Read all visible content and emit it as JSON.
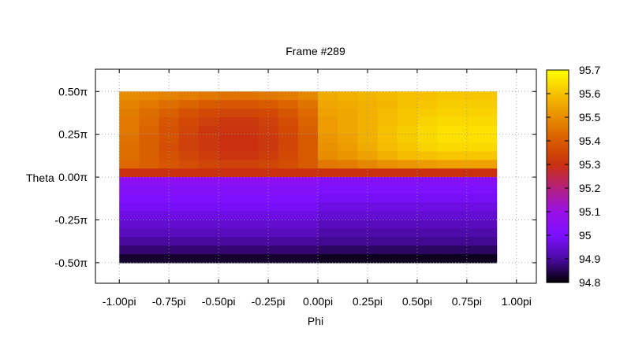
{
  "chart_data": {
    "type": "heatmap",
    "title": "Frame #289",
    "xlabel": "Phi",
    "ylabel": "Theta",
    "x_unit": "pi",
    "y_unit": "π",
    "xlim": [
      -1.12,
      1.1
    ],
    "ylim": [
      -0.62,
      0.63
    ],
    "data_xrange": [
      -1.0,
      0.9
    ],
    "data_yrange": [
      -0.5,
      0.5
    ],
    "x_ticks": [
      {
        "value": -1.0,
        "label": "-1.00pi"
      },
      {
        "value": -0.75,
        "label": "-0.75pi"
      },
      {
        "value": -0.5,
        "label": "-0.50pi"
      },
      {
        "value": -0.25,
        "label": "-0.25pi"
      },
      {
        "value": 0.0,
        "label": "0.00pi"
      },
      {
        "value": 0.25,
        "label": "0.25pi"
      },
      {
        "value": 0.5,
        "label": "0.50pi"
      },
      {
        "value": 0.75,
        "label": "0.75pi"
      },
      {
        "value": 1.0,
        "label": "1.00pi"
      }
    ],
    "y_ticks": [
      {
        "value": 0.5,
        "label": "0.50π"
      },
      {
        "value": 0.25,
        "label": "0.25π"
      },
      {
        "value": 0.0,
        "label": "0.00π"
      },
      {
        "value": -0.25,
        "label": "-0.25π"
      },
      {
        "value": -0.5,
        "label": "-0.50π"
      }
    ],
    "colorbar": {
      "range": [
        94.8,
        95.7
      ],
      "ticks": [
        {
          "value": 95.7,
          "label": "95.7"
        },
        {
          "value": 95.6,
          "label": "95.6"
        },
        {
          "value": 95.5,
          "label": "95.5"
        },
        {
          "value": 95.4,
          "label": "95.4"
        },
        {
          "value": 95.3,
          "label": "95.3"
        },
        {
          "value": 95.2,
          "label": "95.2"
        },
        {
          "value": 95.1,
          "label": "95.1"
        },
        {
          "value": 95.0,
          "label": "95"
        },
        {
          "value": 94.9,
          "label": "94.9"
        },
        {
          "value": 94.8,
          "label": "94.8"
        }
      ]
    },
    "colormap": [
      {
        "value": 94.8,
        "color": "#000000"
      },
      {
        "value": 94.9,
        "color": "#4a0aa0"
      },
      {
        "value": 95.0,
        "color": "#7b10ff"
      },
      {
        "value": 95.1,
        "color": "#9a10e8"
      },
      {
        "value": 95.2,
        "color": "#b42080"
      },
      {
        "value": 95.3,
        "color": "#c83010"
      },
      {
        "value": 95.4,
        "color": "#d85a00"
      },
      {
        "value": 95.5,
        "color": "#e88c00"
      },
      {
        "value": 95.6,
        "color": "#f6c000"
      },
      {
        "value": 95.7,
        "color": "#ffff00"
      }
    ],
    "x": [
      -0.95,
      -0.85,
      -0.75,
      -0.65,
      -0.55,
      -0.45,
      -0.35,
      -0.25,
      -0.15,
      -0.05,
      0.05,
      0.15,
      0.25,
      0.35,
      0.45,
      0.55,
      0.65,
      0.75,
      0.85
    ],
    "y": [
      0.475,
      0.425,
      0.375,
      0.325,
      0.275,
      0.225,
      0.175,
      0.125,
      0.075,
      0.025,
      -0.025,
      -0.075,
      -0.125,
      -0.175,
      -0.225,
      -0.275,
      -0.325,
      -0.375,
      -0.425,
      -0.475
    ],
    "z": [
      [
        95.5,
        95.49,
        95.48,
        95.47,
        95.46,
        95.45,
        95.45,
        95.46,
        95.47,
        95.49,
        95.56,
        95.57,
        95.58,
        95.59,
        95.6,
        95.6,
        95.61,
        95.61,
        95.61
      ],
      [
        95.48,
        95.46,
        95.44,
        95.42,
        95.4,
        95.39,
        95.39,
        95.4,
        95.42,
        95.45,
        95.55,
        95.56,
        95.57,
        95.58,
        95.6,
        95.61,
        95.62,
        95.62,
        95.62
      ],
      [
        95.47,
        95.44,
        95.41,
        95.38,
        95.36,
        95.35,
        95.35,
        95.36,
        95.39,
        95.43,
        95.54,
        95.55,
        95.57,
        95.59,
        95.61,
        95.62,
        95.63,
        95.63,
        95.63
      ],
      [
        95.46,
        95.43,
        95.39,
        95.36,
        95.34,
        95.32,
        95.32,
        95.34,
        95.37,
        95.42,
        95.53,
        95.55,
        95.57,
        95.59,
        95.61,
        95.63,
        95.64,
        95.64,
        95.64
      ],
      [
        95.46,
        95.42,
        95.38,
        95.35,
        95.32,
        95.31,
        95.31,
        95.33,
        95.36,
        95.41,
        95.53,
        95.55,
        95.57,
        95.6,
        95.62,
        95.64,
        95.65,
        95.65,
        95.65
      ],
      [
        95.45,
        95.41,
        95.38,
        95.34,
        95.32,
        95.3,
        95.3,
        95.32,
        95.35,
        95.4,
        95.52,
        95.54,
        95.57,
        95.6,
        95.62,
        95.64,
        95.65,
        95.65,
        95.65
      ],
      [
        95.44,
        95.41,
        95.37,
        95.34,
        95.32,
        95.3,
        95.3,
        95.32,
        95.35,
        95.4,
        95.51,
        95.53,
        95.56,
        95.59,
        95.61,
        95.63,
        95.64,
        95.64,
        95.64
      ],
      [
        95.44,
        95.41,
        95.38,
        95.35,
        95.33,
        95.31,
        95.31,
        95.33,
        95.36,
        95.4,
        95.5,
        95.52,
        95.54,
        95.57,
        95.59,
        95.6,
        95.61,
        95.61,
        95.61
      ],
      [
        95.43,
        95.41,
        95.39,
        95.37,
        95.35,
        95.34,
        95.34,
        95.35,
        95.37,
        95.4,
        95.46,
        95.47,
        95.49,
        95.51,
        95.52,
        95.53,
        95.54,
        95.54,
        95.54
      ],
      [
        95.3,
        95.3,
        95.3,
        95.3,
        95.3,
        95.3,
        95.3,
        95.3,
        95.3,
        95.3,
        95.3,
        95.3,
        95.3,
        95.3,
        95.3,
        95.3,
        95.3,
        95.3,
        95.3
      ],
      [
        95.05,
        95.05,
        95.05,
        95.05,
        95.05,
        95.05,
        95.05,
        95.05,
        95.05,
        95.05,
        95.03,
        95.03,
        95.03,
        95.03,
        95.03,
        95.03,
        95.03,
        95.03,
        95.03
      ],
      [
        95.03,
        95.03,
        95.03,
        95.03,
        95.03,
        95.03,
        95.03,
        95.03,
        95.03,
        95.03,
        95.01,
        95.01,
        95.01,
        95.01,
        95.01,
        95.01,
        95.01,
        95.01,
        95.01
      ],
      [
        95.01,
        95.01,
        95.01,
        95.01,
        95.01,
        95.01,
        95.01,
        95.01,
        95.01,
        95.01,
        94.99,
        94.99,
        94.99,
        94.99,
        94.99,
        94.99,
        94.99,
        94.99,
        94.99
      ],
      [
        94.99,
        94.99,
        94.99,
        94.99,
        94.99,
        94.99,
        94.99,
        94.99,
        94.99,
        94.99,
        94.97,
        94.97,
        94.97,
        94.97,
        94.97,
        94.97,
        94.97,
        94.97,
        94.97
      ],
      [
        94.97,
        94.97,
        94.97,
        94.97,
        94.97,
        94.97,
        94.97,
        94.97,
        94.97,
        94.97,
        94.95,
        94.95,
        94.95,
        94.95,
        94.95,
        94.95,
        94.95,
        94.95,
        94.95
      ],
      [
        94.95,
        94.95,
        94.95,
        94.95,
        94.95,
        94.95,
        94.95,
        94.95,
        94.95,
        94.95,
        94.93,
        94.93,
        94.93,
        94.93,
        94.93,
        94.93,
        94.93,
        94.93,
        94.93
      ],
      [
        94.93,
        94.93,
        94.93,
        94.93,
        94.93,
        94.93,
        94.93,
        94.93,
        94.93,
        94.93,
        94.91,
        94.91,
        94.91,
        94.91,
        94.91,
        94.91,
        94.91,
        94.91,
        94.91
      ],
      [
        94.9,
        94.9,
        94.9,
        94.9,
        94.9,
        94.9,
        94.9,
        94.9,
        94.9,
        94.9,
        94.89,
        94.89,
        94.89,
        94.89,
        94.89,
        94.89,
        94.89,
        94.89,
        94.89
      ],
      [
        94.87,
        94.87,
        94.87,
        94.87,
        94.87,
        94.87,
        94.87,
        94.87,
        94.87,
        94.87,
        94.86,
        94.86,
        94.86,
        94.86,
        94.86,
        94.86,
        94.86,
        94.86,
        94.86
      ],
      [
        94.83,
        94.83,
        94.83,
        94.83,
        94.83,
        94.83,
        94.83,
        94.83,
        94.83,
        94.83,
        94.82,
        94.82,
        94.82,
        94.82,
        94.82,
        94.82,
        94.82,
        94.82,
        94.82
      ]
    ],
    "grid": true,
    "legend": "colorbar-right"
  }
}
